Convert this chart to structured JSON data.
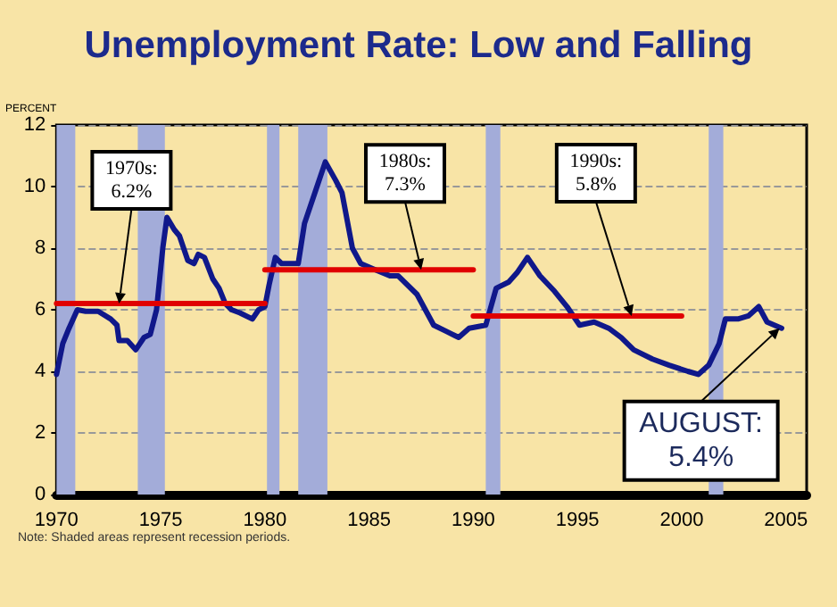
{
  "chart_data": {
    "type": "line",
    "title": "Unemployment Rate: Low and Falling",
    "ylabel": "PERCENT",
    "xlim": [
      1970,
      2006
    ],
    "xticks": [
      1970,
      1975,
      1980,
      1985,
      1990,
      1995,
      2000,
      2005
    ],
    "ylim": [
      0,
      12
    ],
    "yticks": [
      0,
      2,
      4,
      6,
      8,
      10,
      12
    ],
    "grid": "y",
    "marker": "none",
    "series": [
      {
        "color": "#10188a",
        "x": [
          1970.0,
          1970.3,
          1970.6,
          1971.0,
          1971.4,
          1972.0,
          1972.6,
          1972.9,
          1973.0,
          1973.4,
          1973.8,
          1974.2,
          1974.5,
          1974.8,
          1975.1,
          1975.3,
          1975.65,
          1975.9,
          1976.3,
          1976.6,
          1976.8,
          1977.1,
          1977.5,
          1977.8,
          1978.1,
          1978.4,
          1978.8,
          1979.4,
          1979.7,
          1980.0,
          1980.2,
          1980.5,
          1980.8,
          1981.6,
          1981.9,
          1982.5,
          1982.9,
          1983.4,
          1983.7,
          1984.2,
          1984.6,
          1985.3,
          1986.0,
          1986.4,
          1987.3,
          1988.1,
          1988.7,
          1989.3,
          1989.8,
          1990.6,
          1991.1,
          1991.7,
          1992.1,
          1992.6,
          1993.2,
          1993.9,
          1994.5,
          1995.1,
          1995.8,
          1996.5,
          1997.1,
          1997.7,
          1998.6,
          1999.4,
          2000.3,
          2000.8,
          2001.3,
          2001.8,
          2002.1,
          2002.7,
          2003.2,
          2003.7,
          2004.1,
          2004.8
        ],
        "values": [
          3.9,
          4.9,
          5.4,
          6.0,
          5.95,
          5.95,
          5.7,
          5.5,
          5.0,
          5.0,
          4.7,
          5.1,
          5.2,
          6.0,
          8.0,
          9.0,
          8.6,
          8.4,
          7.6,
          7.5,
          7.8,
          7.7,
          7.0,
          6.7,
          6.2,
          6.0,
          5.9,
          5.7,
          6.0,
          6.1,
          6.8,
          7.7,
          7.5,
          7.5,
          8.8,
          10.0,
          10.8,
          10.2,
          9.8,
          8.0,
          7.5,
          7.3,
          7.1,
          7.1,
          6.5,
          5.5,
          5.3,
          5.1,
          5.4,
          5.5,
          6.7,
          6.9,
          7.2,
          7.7,
          7.1,
          6.6,
          6.1,
          5.5,
          5.6,
          5.4,
          5.1,
          4.7,
          4.4,
          4.2,
          4.0,
          3.9,
          4.2,
          4.9,
          5.7,
          5.7,
          5.8,
          6.1,
          5.6,
          5.4
        ]
      },
      {
        "color": "#e00000",
        "x": [
          1970,
          1980
        ],
        "values": [
          6.2,
          6.2
        ]
      },
      {
        "color": "#e00000",
        "x": [
          1980,
          1990
        ],
        "values": [
          7.3,
          7.3
        ]
      },
      {
        "color": "#e00000",
        "x": [
          1990,
          2000
        ],
        "values": [
          5.8,
          5.8
        ]
      }
    ],
    "bands": [
      {
        "axis": "x",
        "from": 1970,
        "to": 1970.9,
        "color": "#a3acd9"
      },
      {
        "axis": "x",
        "from": 1973.9,
        "to": 1975.2,
        "color": "#a3acd9"
      },
      {
        "axis": "x",
        "from": 1980.1,
        "to": 1980.7,
        "color": "#a3acd9"
      },
      {
        "axis": "x",
        "from": 1981.6,
        "to": 1983.0,
        "color": "#a3acd9"
      },
      {
        "axis": "x",
        "from": 1990.6,
        "to": 1991.3,
        "color": "#a3acd9"
      },
      {
        "axis": "x",
        "from": 2001.3,
        "to": 2002.0,
        "color": "#a3acd9"
      }
    ],
    "annotations": [
      {
        "text": "1970s:\n6.2%",
        "x": 1973.0,
        "y": 6.2
      },
      {
        "text": "1980s:\n7.3%",
        "x": 1987.5,
        "y": 7.3
      },
      {
        "text": "1990s:\n5.8%",
        "x": 1997.6,
        "y": 5.8
      },
      {
        "text": "AUGUST:\n5.4%",
        "x": 2004.7,
        "y": 5.4
      },
      "Note: Shaded areas represent recession periods."
    ]
  }
}
